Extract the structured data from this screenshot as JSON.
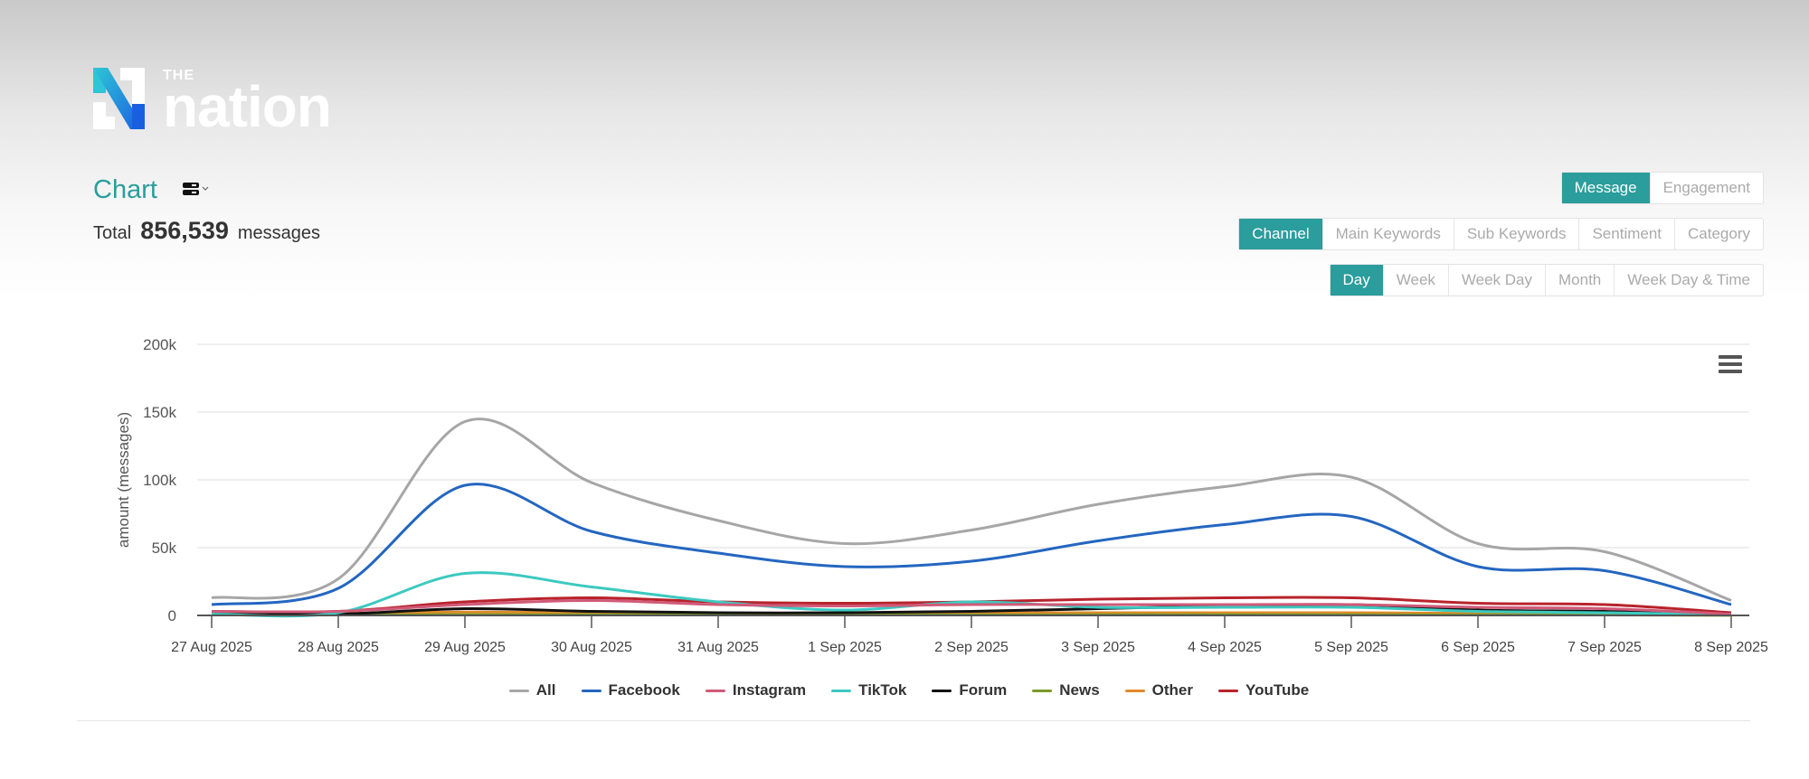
{
  "brand": {
    "the": "THE",
    "name": "nation",
    "colors": [
      "#2ec6d6",
      "#1a5fe0"
    ]
  },
  "header": {
    "title": "Chart",
    "view_icon": "server-stack-icon",
    "total_label": "Total",
    "total_value": "856,539",
    "total_unit": "messages"
  },
  "metric_tabs": [
    {
      "label": "Message",
      "active": true
    },
    {
      "label": "Engagement",
      "active": false
    }
  ],
  "group_tabs": [
    {
      "label": "Channel",
      "active": true
    },
    {
      "label": "Main Keywords",
      "active": false
    },
    {
      "label": "Sub Keywords",
      "active": false
    },
    {
      "label": "Sentiment",
      "active": false
    },
    {
      "label": "Category",
      "active": false
    }
  ],
  "period_tabs": [
    {
      "label": "Day",
      "active": true
    },
    {
      "label": "Week",
      "active": false
    },
    {
      "label": "Week Day",
      "active": false
    },
    {
      "label": "Month",
      "active": false
    },
    {
      "label": "Week Day & Time",
      "active": false
    }
  ],
  "accent": "#2a9d9c",
  "menu_icon": "hamburger-menu-icon",
  "chart_data": {
    "type": "line",
    "ylabel": "amount (messages)",
    "ylim": [
      0,
      200000
    ],
    "yticks": [
      "0",
      "50k",
      "100k",
      "150k",
      "200k"
    ],
    "ytick_values": [
      0,
      50000,
      100000,
      150000,
      200000
    ],
    "grid": true,
    "legend": "bottom",
    "categories": [
      "27 Aug 2025",
      "28 Aug 2025",
      "29 Aug 2025",
      "30 Aug 2025",
      "31 Aug 2025",
      "1 Sep 2025",
      "2 Sep 2025",
      "3 Sep 2025",
      "4 Sep 2025",
      "5 Sep 2025",
      "6 Sep 2025",
      "7 Sep 2025",
      "8 Sep 2025"
    ],
    "series": [
      {
        "name": "All",
        "color": "#a6a6a6",
        "values": [
          13000,
          27000,
          143000,
          98000,
          70000,
          53000,
          63000,
          82000,
          95000,
          102000,
          53000,
          47000,
          11000
        ]
      },
      {
        "name": "Facebook",
        "color": "#2466c0",
        "values": [
          8000,
          20000,
          96000,
          62000,
          46000,
          36000,
          40000,
          55000,
          67000,
          73000,
          36000,
          33000,
          8000
        ]
      },
      {
        "name": "Instagram",
        "color": "#d05a78",
        "values": [
          3000,
          3000,
          8000,
          11000,
          8000,
          7000,
          8000,
          8000,
          8000,
          8000,
          6000,
          5000,
          1000
        ]
      },
      {
        "name": "TikTok",
        "color": "#3cc9c0",
        "values": [
          1000,
          2000,
          31000,
          21000,
          10000,
          4000,
          10000,
          6000,
          6000,
          6000,
          3000,
          2000,
          500
        ]
      },
      {
        "name": "Forum",
        "color": "#111111",
        "values": [
          1000,
          1000,
          5000,
          3000,
          2000,
          2000,
          3000,
          5000,
          7000,
          8000,
          4000,
          3000,
          1000
        ]
      },
      {
        "name": "News",
        "color": "#7a9a2a",
        "values": [
          300,
          300,
          600,
          500,
          400,
          400,
          400,
          500,
          500,
          500,
          400,
          300,
          100
        ]
      },
      {
        "name": "Other",
        "color": "#e08a2a",
        "values": [
          1500,
          1500,
          2500,
          2000,
          1500,
          1500,
          1800,
          2000,
          2000,
          2000,
          1500,
          1200,
          300
        ]
      },
      {
        "name": "YouTube",
        "color": "#b8232c",
        "values": [
          3000,
          3000,
          10000,
          13000,
          10000,
          9000,
          10000,
          12000,
          13000,
          13000,
          9000,
          8000,
          2000
        ]
      }
    ]
  }
}
